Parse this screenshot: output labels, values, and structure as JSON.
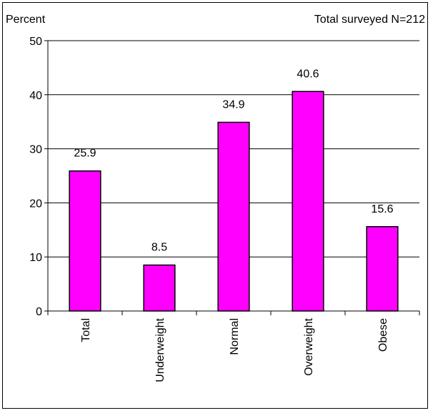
{
  "chart_data": {
    "type": "bar",
    "ylabel": "Percent",
    "annotation": "Total surveyed N=212",
    "categories": [
      "Total",
      "Underweight",
      "Normal",
      "Overweight",
      "Obese"
    ],
    "values": [
      25.9,
      8.5,
      34.9,
      40.6,
      15.6
    ],
    "data_labels": [
      "25.9",
      "8.5",
      "34.9",
      "40.6",
      "15.6"
    ],
    "ylim": [
      0,
      50
    ],
    "yticks": [
      0,
      10,
      20,
      30,
      40,
      50
    ],
    "grid": true,
    "bar_color": "#FF00FF",
    "bar_edge_color": "#000000"
  }
}
